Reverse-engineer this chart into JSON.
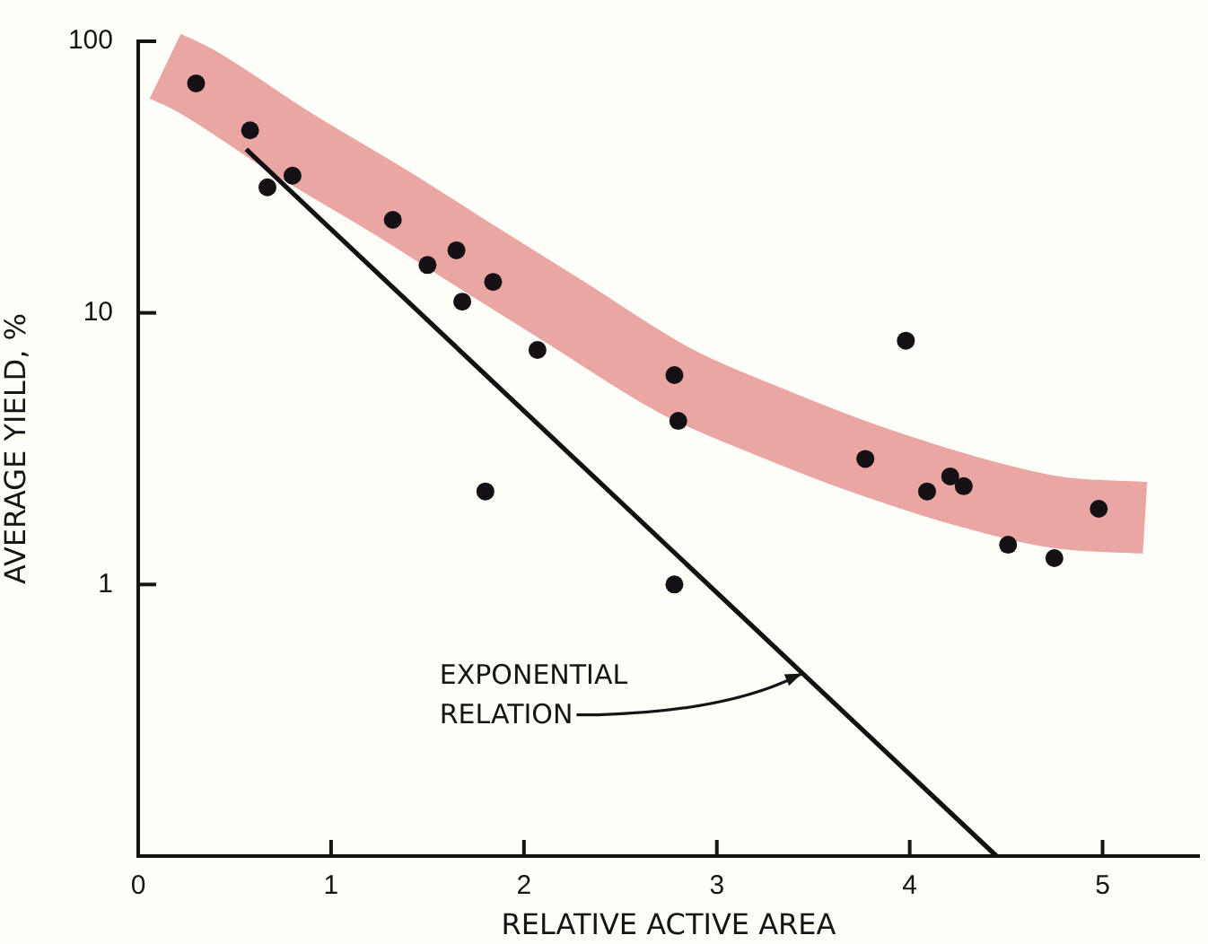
{
  "chart_data": {
    "type": "scatter",
    "xlabel": "RELATIVE ACTIVE AREA",
    "ylabel": "AVERAGE YIELD, %",
    "log": "y",
    "xlim": [
      0,
      5.5
    ],
    "xticks": [
      0,
      1,
      2,
      3,
      4,
      5
    ],
    "ylim": [
      0.1,
      100
    ],
    "yticks": [
      1,
      10,
      100
    ],
    "annotations": [
      {
        "text": "EXPONENTIAL\nRELATION",
        "x": 3.47,
        "y": 0.47
      }
    ],
    "series": [
      {
        "type": "line",
        "color": "#eaa6a3",
        "x": [
          0.14,
          0.29,
          0.8,
          1.33,
          1.76,
          2.2,
          2.79,
          3.3,
          3.77,
          4.3,
          4.77,
          5.22
        ],
        "values": [
          81,
          72,
          42,
          25,
          16,
          10.2,
          5.6,
          3.9,
          2.9,
          2.2,
          1.84,
          1.76
        ]
      },
      {
        "type": "line",
        "color": "#111111",
        "x": [
          0.56,
          4.45
        ],
        "values": [
          40,
          0.1
        ]
      },
      {
        "color": "#141014",
        "marker": "circle",
        "x": [
          0.3,
          0.58,
          0.67,
          0.8,
          1.32,
          1.5,
          1.65,
          1.68,
          1.84,
          1.8,
          2.07,
          2.78,
          2.8,
          2.78,
          3.77,
          3.98,
          4.09,
          4.21,
          4.28,
          4.51,
          4.75,
          4.98
        ],
        "values": [
          70,
          47,
          29,
          32,
          22,
          15,
          17,
          11,
          13,
          2.2,
          7.3,
          5.9,
          4.0,
          1.0,
          2.9,
          7.9,
          2.2,
          2.5,
          2.3,
          1.4,
          1.25,
          1.9
        ]
      }
    ]
  }
}
